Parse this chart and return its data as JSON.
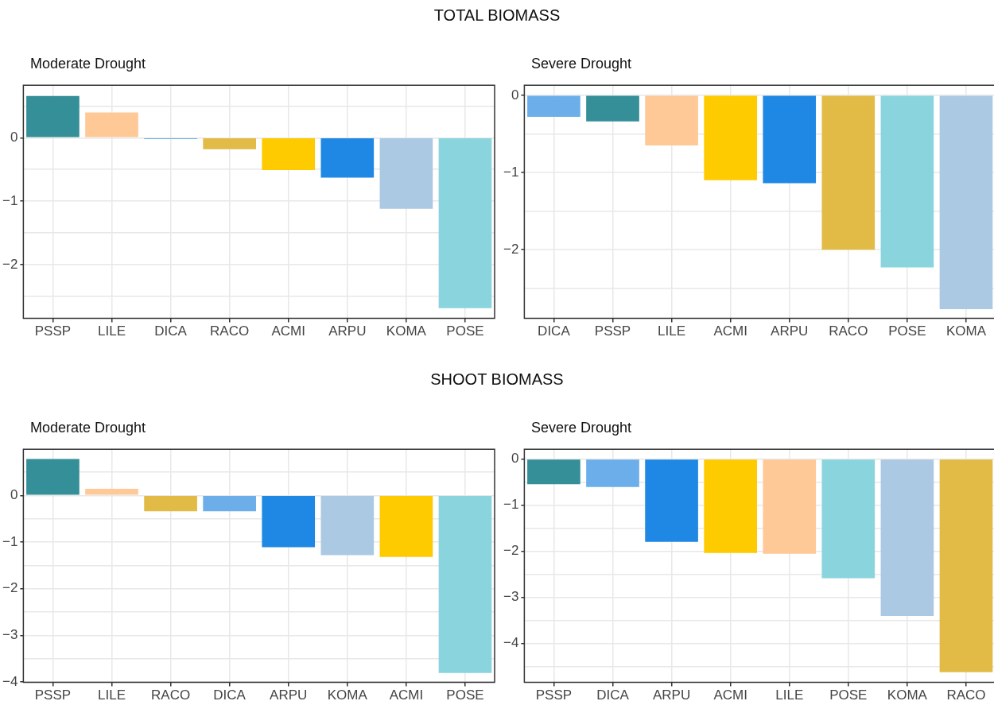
{
  "chart_data": [
    {
      "type": "bar",
      "title": "TOTAL BIOMASS",
      "subtitle": "Moderate Drought",
      "categories": [
        "PSSP",
        "LILE",
        "DICA",
        "RACO",
        "ACMI",
        "ARPU",
        "KOMA",
        "POSE"
      ],
      "values": [
        0.66,
        0.4,
        -0.02,
        -0.18,
        -0.51,
        -0.63,
        -1.12,
        -2.69
      ],
      "colors": [
        "#358f98",
        "#fec997",
        "#6caeea",
        "#e2bb46",
        "#fecb00",
        "#1f88e4",
        "#abc9e2",
        "#8ad4de"
      ],
      "ylim": [
        -2.85,
        0.83
      ],
      "yticks": [
        {
          "value": -2.5,
          "label": null
        },
        -2,
        {
          "value": -1.5,
          "label": null
        },
        -1,
        {
          "value": -0.5,
          "label": null
        },
        0,
        {
          "value": 0.5,
          "label": null
        }
      ],
      "grid": true,
      "legend": false
    },
    {
      "type": "bar",
      "subtitle": "Severe Drought",
      "categories": [
        "DICA",
        "PSSP",
        "LILE",
        "ACMI",
        "ARPU",
        "RACO",
        "POSE",
        "KOMA"
      ],
      "values": [
        -0.28,
        -0.34,
        -0.65,
        -1.1,
        -1.14,
        -2.0,
        -2.23,
        -2.77
      ],
      "colors": [
        "#6caeea",
        "#358f98",
        "#fec997",
        "#fecb00",
        "#1f88e4",
        "#e2bb46",
        "#8ad4de",
        "#abc9e2"
      ],
      "ylim": [
        -2.89,
        0.13
      ],
      "yticks": [
        {
          "value": -2.5,
          "label": null
        },
        -2,
        {
          "value": -1.5,
          "label": null
        },
        -1,
        {
          "value": -0.5,
          "label": null
        },
        0
      ],
      "grid": true,
      "legend": false
    },
    {
      "type": "bar",
      "title": "SHOOT BIOMASS",
      "subtitle": "Moderate Drought",
      "categories": [
        "PSSP",
        "LILE",
        "RACO",
        "DICA",
        "ARPU",
        "KOMA",
        "ACMI",
        "POSE"
      ],
      "values": [
        0.78,
        0.14,
        -0.34,
        -0.34,
        -1.11,
        -1.28,
        -1.32,
        -3.81
      ],
      "colors": [
        "#358f98",
        "#fec997",
        "#e2bb46",
        "#6caeea",
        "#1f88e4",
        "#abc9e2",
        "#fecb00",
        "#8ad4de"
      ],
      "ylim": [
        -4.01,
        0.99
      ],
      "yticks": [
        -4,
        {
          "value": -3.5,
          "label": null
        },
        -3,
        {
          "value": -2.5,
          "label": null
        },
        -2,
        {
          "value": -1.5,
          "label": null
        },
        -1,
        {
          "value": -0.5,
          "label": null
        },
        0,
        {
          "value": 0.5,
          "label": null
        }
      ],
      "grid": true,
      "legend": false
    },
    {
      "type": "bar",
      "subtitle": "Severe Drought",
      "categories": [
        "PSSP",
        "DICA",
        "ARPU",
        "ACMI",
        "LILE",
        "POSE",
        "KOMA",
        "RACO"
      ],
      "values": [
        -0.55,
        -0.61,
        -1.8,
        -2.04,
        -2.06,
        -2.59,
        -3.41,
        -4.63
      ],
      "colors": [
        "#358f98",
        "#6caeea",
        "#1f88e4",
        "#fecb00",
        "#fec997",
        "#8ad4de",
        "#abc9e2",
        "#e2bb46"
      ],
      "ylim": [
        -4.85,
        0.21
      ],
      "yticks": [
        {
          "value": -4.5,
          "label": null
        },
        -4,
        {
          "value": -3.5,
          "label": null
        },
        -3,
        {
          "value": -2.5,
          "label": null
        },
        -2,
        {
          "value": -1.5,
          "label": null
        },
        -1,
        {
          "value": -0.5,
          "label": null
        },
        0
      ],
      "grid": true,
      "legend": false
    }
  ]
}
